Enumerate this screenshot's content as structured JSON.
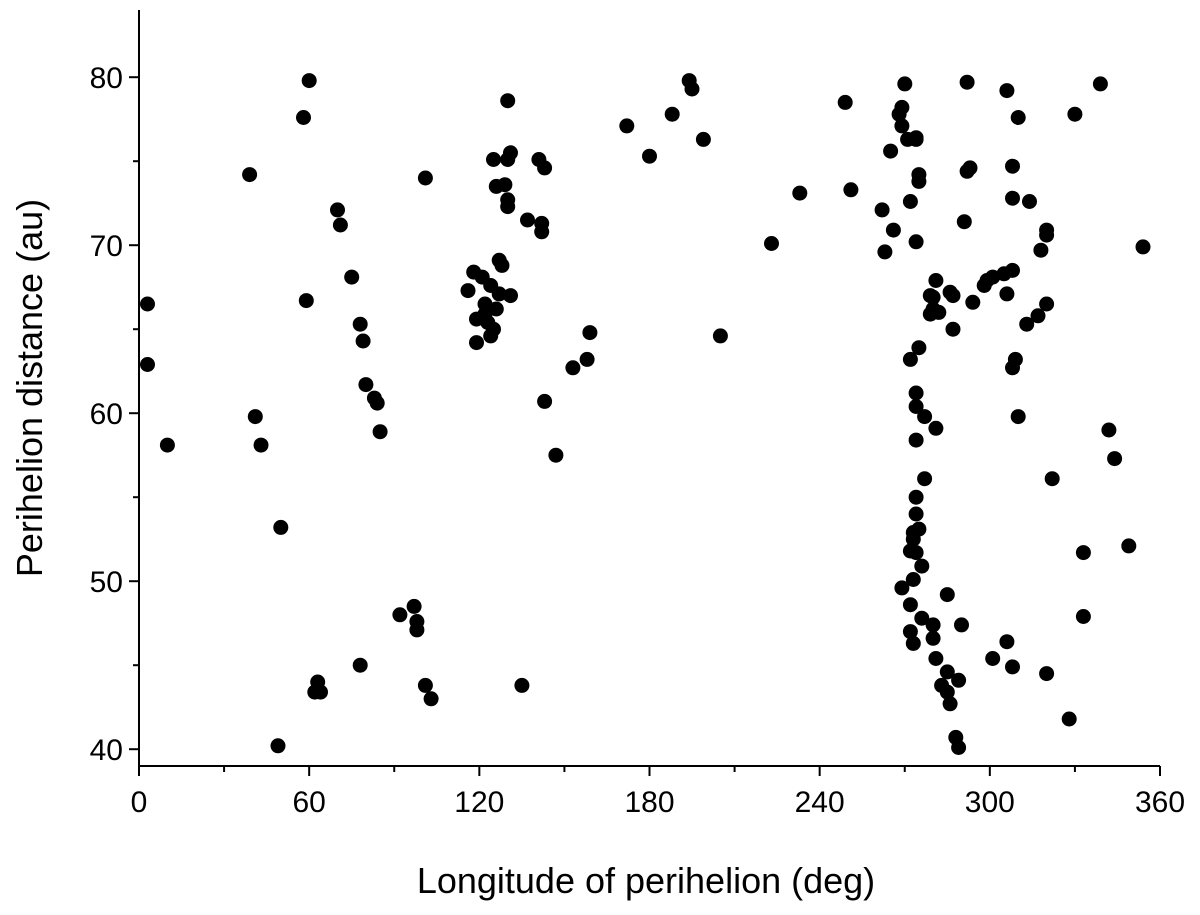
{
  "chart_data": {
    "type": "scatter",
    "title": "",
    "xlabel": "Longitude of perihelion (deg)",
    "ylabel": "Perihelion distance (au)",
    "xlim": [
      0,
      360
    ],
    "ylim": [
      39,
      84
    ],
    "xticks": [
      0,
      60,
      120,
      180,
      240,
      300,
      360
    ],
    "xtick_labels": [
      "0",
      "60",
      "120",
      "180",
      "240",
      "300",
      "360"
    ],
    "xminor_ticks": [
      30,
      90,
      150,
      210,
      270,
      330
    ],
    "yticks": [
      40,
      50,
      60,
      70,
      80
    ],
    "ytick_labels": [
      "40",
      "50",
      "60",
      "70",
      "80"
    ],
    "yminor_ticks": [
      45,
      55,
      65,
      75
    ],
    "grid": false,
    "legend": false,
    "marker_color": "#000000",
    "points": [
      [
        3,
        66.5
      ],
      [
        3,
        62.9
      ],
      [
        10,
        58.1
      ],
      [
        39,
        74.2
      ],
      [
        41,
        59.8
      ],
      [
        43,
        58.1
      ],
      [
        50,
        53.2
      ],
      [
        49,
        40.2
      ],
      [
        58,
        77.6
      ],
      [
        60,
        79.8
      ],
      [
        59,
        66.7
      ],
      [
        63,
        44.0
      ],
      [
        62,
        43.4
      ],
      [
        64,
        43.4
      ],
      [
        70,
        72.1
      ],
      [
        71,
        71.2
      ],
      [
        75,
        68.1
      ],
      [
        78,
        65.3
      ],
      [
        79,
        64.3
      ],
      [
        80,
        61.7
      ],
      [
        83,
        60.9
      ],
      [
        84,
        60.6
      ],
      [
        85,
        58.9
      ],
      [
        78,
        45.0
      ],
      [
        92,
        48.0
      ],
      [
        97,
        48.5
      ],
      [
        98,
        47.6
      ],
      [
        98,
        47.1
      ],
      [
        101,
        74.0
      ],
      [
        101,
        43.8
      ],
      [
        103,
        43.0
      ],
      [
        116,
        67.3
      ],
      [
        118,
        68.4
      ],
      [
        119,
        65.6
      ],
      [
        119,
        64.2
      ],
      [
        121,
        68.1
      ],
      [
        122,
        66.5
      ],
      [
        122,
        65.9
      ],
      [
        123,
        65.4
      ],
      [
        124,
        64.6
      ],
      [
        124,
        67.6
      ],
      [
        125,
        65.0
      ],
      [
        126,
        66.2
      ],
      [
        127,
        67.1
      ],
      [
        127,
        69.1
      ],
      [
        128,
        68.8
      ],
      [
        125,
        75.1
      ],
      [
        126,
        73.5
      ],
      [
        129,
        73.6
      ],
      [
        130,
        75.1
      ],
      [
        130,
        72.7
      ],
      [
        130,
        72.3
      ],
      [
        130,
        78.6
      ],
      [
        131,
        75.5
      ],
      [
        131,
        67.0
      ],
      [
        137,
        71.5
      ],
      [
        141,
        75.1
      ],
      [
        142,
        71.3
      ],
      [
        142,
        70.8
      ],
      [
        143,
        74.6
      ],
      [
        143,
        60.7
      ],
      [
        147,
        57.5
      ],
      [
        135,
        43.8
      ],
      [
        153,
        62.7
      ],
      [
        158,
        63.2
      ],
      [
        159,
        64.8
      ],
      [
        172,
        77.1
      ],
      [
        180,
        75.3
      ],
      [
        188,
        77.8
      ],
      [
        194,
        79.8
      ],
      [
        195,
        79.3
      ],
      [
        199,
        76.3
      ],
      [
        205,
        64.6
      ],
      [
        223,
        70.1
      ],
      [
        233,
        73.1
      ],
      [
        249,
        78.5
      ],
      [
        251,
        73.3
      ],
      [
        262,
        72.1
      ],
      [
        263,
        69.6
      ],
      [
        265,
        75.6
      ],
      [
        266,
        70.9
      ],
      [
        268,
        77.8
      ],
      [
        269,
        77.1
      ],
      [
        269,
        78.2
      ],
      [
        270,
        79.6
      ],
      [
        271,
        76.3
      ],
      [
        272,
        72.6
      ],
      [
        274,
        76.3
      ],
      [
        274,
        76.4
      ],
      [
        275,
        74.2
      ],
      [
        275,
        73.8
      ],
      [
        274,
        70.2
      ],
      [
        272,
        63.2
      ],
      [
        275,
        63.9
      ],
      [
        274,
        61.2
      ],
      [
        274,
        60.4
      ],
      [
        277,
        59.8
      ],
      [
        274,
        58.4
      ],
      [
        281,
        59.1
      ],
      [
        277,
        56.1
      ],
      [
        274,
        55.0
      ],
      [
        274,
        54.0
      ],
      [
        273,
        52.9
      ],
      [
        273,
        52.5
      ],
      [
        275,
        53.1
      ],
      [
        272,
        51.8
      ],
      [
        274,
        51.7
      ],
      [
        276,
        50.9
      ],
      [
        273,
        50.1
      ],
      [
        269,
        49.6
      ],
      [
        272,
        48.6
      ],
      [
        276,
        47.8
      ],
      [
        272,
        47.0
      ],
      [
        273,
        46.3
      ],
      [
        280,
        47.4
      ],
      [
        280,
        46.6
      ],
      [
        281,
        45.4
      ],
      [
        283,
        43.8
      ],
      [
        285,
        44.6
      ],
      [
        285,
        43.4
      ],
      [
        286,
        42.7
      ],
      [
        289,
        44.1
      ],
      [
        288,
        40.7
      ],
      [
        289,
        40.1
      ],
      [
        285,
        49.2
      ],
      [
        290,
        47.4
      ],
      [
        279,
        67.0
      ],
      [
        280,
        66.9
      ],
      [
        281,
        67.9
      ],
      [
        279,
        65.9
      ],
      [
        280,
        66.2
      ],
      [
        282,
        66.0
      ],
      [
        286,
        67.2
      ],
      [
        287,
        67.0
      ],
      [
        287,
        65.0
      ],
      [
        291,
        71.4
      ],
      [
        292,
        74.4
      ],
      [
        293,
        74.6
      ],
      [
        292,
        79.7
      ],
      [
        294,
        66.6
      ],
      [
        298,
        67.6
      ],
      [
        299,
        67.9
      ],
      [
        301,
        68.1
      ],
      [
        305,
        68.3
      ],
      [
        306,
        67.1
      ],
      [
        308,
        68.5
      ],
      [
        306,
        79.2
      ],
      [
        308,
        74.7
      ],
      [
        308,
        72.8
      ],
      [
        310,
        77.6
      ],
      [
        309,
        63.2
      ],
      [
        308,
        62.7
      ],
      [
        310,
        59.8
      ],
      [
        301,
        45.4
      ],
      [
        306,
        46.4
      ],
      [
        308,
        44.9
      ],
      [
        313,
        65.3
      ],
      [
        314,
        72.6
      ],
      [
        317,
        65.8
      ],
      [
        318,
        69.7
      ],
      [
        320,
        70.9
      ],
      [
        320,
        70.6
      ],
      [
        320,
        66.5
      ],
      [
        320,
        44.5
      ],
      [
        322,
        56.1
      ],
      [
        328,
        41.8
      ],
      [
        330,
        77.8
      ],
      [
        333,
        51.7
      ],
      [
        333,
        47.9
      ],
      [
        339,
        79.6
      ],
      [
        342,
        59.0
      ],
      [
        344,
        57.3
      ],
      [
        349,
        52.1
      ],
      [
        354,
        69.9
      ]
    ]
  }
}
